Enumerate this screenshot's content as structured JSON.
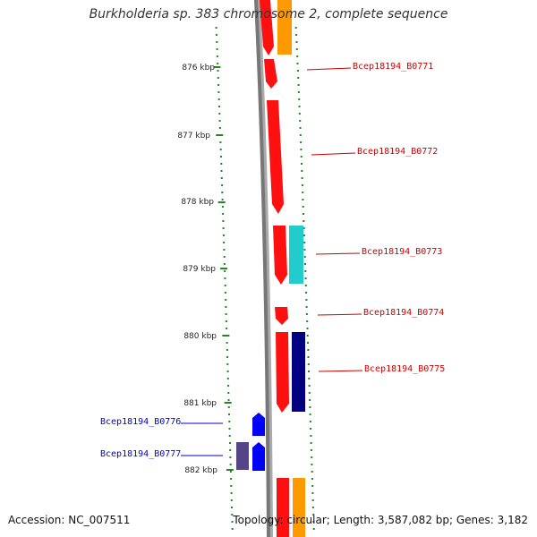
{
  "title": "Burkholderia sp. 383 chromosome 2, complete sequence",
  "footer": {
    "accession": "Accession: NC_007511",
    "topology": "Topology: circular; Length: 3,587,082 bp; Genes: 3,182"
  },
  "ticks": [
    "876 kbp",
    "877 kbp",
    "878 kbp",
    "879 kbp",
    "880 kbp",
    "881 kbp",
    "882 kbp"
  ],
  "colors": {
    "forward_label": "#cc0000",
    "reverse_label": "#0000cc",
    "backbone": "#888888",
    "tick": "#228822",
    "gene_red": "#ff1010",
    "gene_orange": "#ff9900",
    "gene_cyan": "#22cccc",
    "gene_navy": "#000080",
    "gene_blue": "#0000ff",
    "gene_purple": "#554488"
  },
  "genes": {
    "forward": [
      "Bcep18194_B0771",
      "Bcep18194_B0772",
      "Bcep18194_B0773",
      "Bcep18194_B0774",
      "Bcep18194_B0775"
    ],
    "reverse": [
      "Bcep18194_B0776",
      "Bcep18194_B0777"
    ]
  }
}
